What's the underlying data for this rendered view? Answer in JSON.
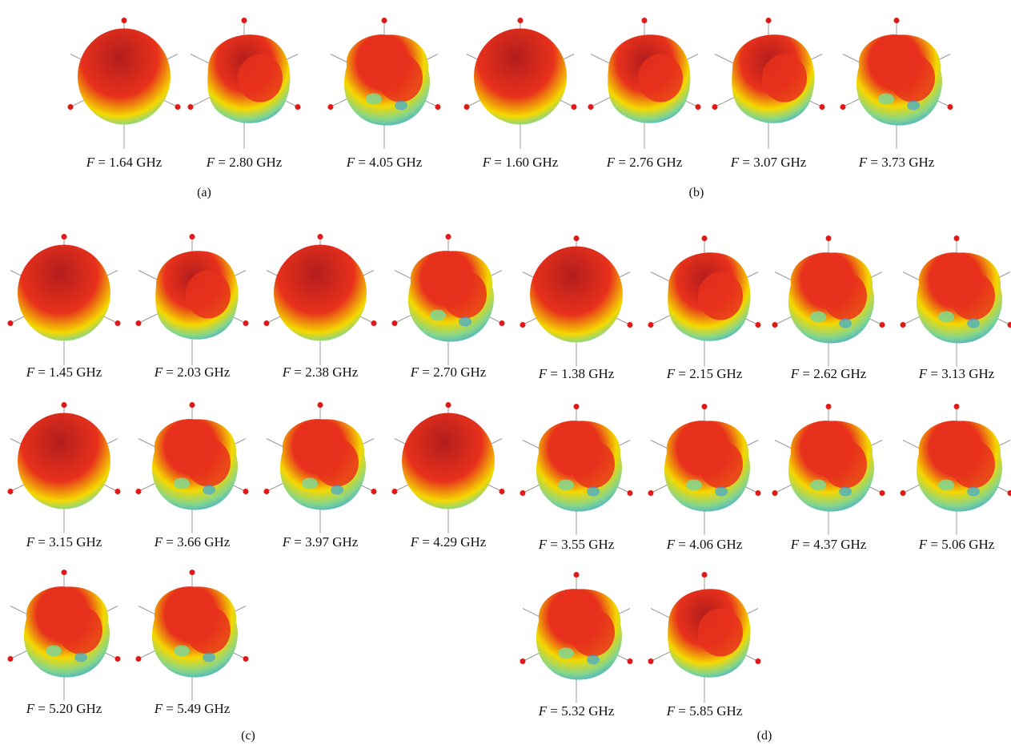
{
  "panels": [
    {
      "label": "(a)",
      "items": [
        {
          "freq": "1.64 GHz",
          "pattern": "smooth"
        },
        {
          "freq": "2.80 GHz",
          "pattern": "lobed"
        },
        {
          "freq": "4.05 GHz",
          "pattern": "bumpy"
        }
      ]
    },
    {
      "label": "(b)",
      "items": [
        {
          "freq": "1.60 GHz",
          "pattern": "smooth"
        },
        {
          "freq": "2.76 GHz",
          "pattern": "lobed"
        },
        {
          "freq": "3.07 GHz",
          "pattern": "lobed"
        },
        {
          "freq": "3.73 GHz",
          "pattern": "bumpy"
        }
      ]
    },
    {
      "label": "(c)",
      "items": [
        {
          "freq": "1.45 GHz",
          "pattern": "smooth"
        },
        {
          "freq": "2.03 GHz",
          "pattern": "lobed"
        },
        {
          "freq": "2.38 GHz",
          "pattern": "smooth"
        },
        {
          "freq": "2.70 GHz",
          "pattern": "bumpy"
        },
        {
          "freq": "3.15 GHz",
          "pattern": "smooth"
        },
        {
          "freq": "3.66 GHz",
          "pattern": "bumpy"
        },
        {
          "freq": "3.97 GHz",
          "pattern": "bumpy"
        },
        {
          "freq": "4.29 GHz",
          "pattern": "smooth"
        },
        {
          "freq": "5.20 GHz",
          "pattern": "bumpy"
        },
        {
          "freq": "5.49 GHz",
          "pattern": "bumpy"
        }
      ]
    },
    {
      "label": "(d)",
      "items": [
        {
          "freq": "1.38 GHz",
          "pattern": "smooth"
        },
        {
          "freq": "2.15 GHz",
          "pattern": "lobed"
        },
        {
          "freq": "2.62 GHz",
          "pattern": "bumpy"
        },
        {
          "freq": "3.13 GHz",
          "pattern": "bumpy"
        },
        {
          "freq": "3.55 GHz",
          "pattern": "bumpy"
        },
        {
          "freq": "4.06 GHz",
          "pattern": "bumpy"
        },
        {
          "freq": "4.37 GHz",
          "pattern": "bumpy"
        },
        {
          "freq": "5.06 GHz",
          "pattern": "bumpy"
        },
        {
          "freq": "5.32 GHz",
          "pattern": "bumpy"
        },
        {
          "freq": "5.85 GHz",
          "pattern": "lobed"
        }
      ]
    }
  ],
  "caption_prefix": "F = ",
  "colors": {
    "peak": "#b31d1d",
    "high": "#e8311c",
    "mid": "#f4d800",
    "low": "#86d68a",
    "null": "#3aa8d8",
    "axis": "#999999",
    "arrow": "#e01818"
  }
}
